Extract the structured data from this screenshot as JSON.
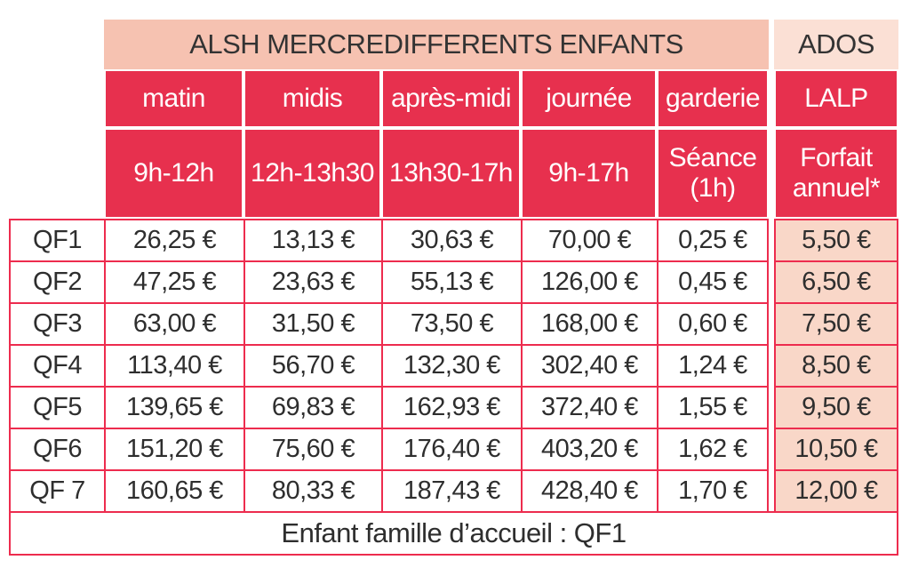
{
  "colors": {
    "red": "#e7304e",
    "red_border": "#ed2c4e",
    "salmon": "#f6c2b1",
    "ados": "#fbe0d5",
    "cell_pink": "#f9d7c8",
    "text": "#2e2e2e"
  },
  "header": {
    "main_title": "ALSH MERCREDIFFERENTS ENFANTS",
    "ados_title": "ADOS"
  },
  "columns": [
    {
      "label": "matin",
      "time1": "9h-12h",
      "time2": ""
    },
    {
      "label": "midis",
      "time1": "12h-13h30",
      "time2": ""
    },
    {
      "label": "après-midi",
      "time1": "13h30-17h",
      "time2": ""
    },
    {
      "label": "journée",
      "time1": "9h-17h",
      "time2": ""
    },
    {
      "label": "garderie",
      "time1": "Séance",
      "time2": "(1h)"
    },
    {
      "label": "LALP",
      "time1": "Forfait",
      "time2": "annuel*"
    }
  ],
  "rows": [
    {
      "label": "QF1",
      "values": [
        "26,25 €",
        "13,13 €",
        "30,63 €",
        "70,00 €",
        "0,25 €",
        "5,50 €"
      ]
    },
    {
      "label": "QF2",
      "values": [
        "47,25 €",
        "23,63 €",
        "55,13 €",
        "126,00 €",
        "0,45 €",
        "6,50 €"
      ]
    },
    {
      "label": "QF3",
      "values": [
        "63,00 €",
        "31,50 €",
        "73,50 €",
        "168,00 €",
        "0,60 €",
        "7,50 €"
      ]
    },
    {
      "label": "QF4",
      "values": [
        "113,40 €",
        "56,70 €",
        "132,30 €",
        "302,40 €",
        "1,24 €",
        "8,50 €"
      ]
    },
    {
      "label": "QF5",
      "values": [
        "139,65 €",
        "69,83 €",
        "162,93 €",
        "372,40 €",
        "1,55 €",
        "9,50 €"
      ]
    },
    {
      "label": "QF6",
      "values": [
        "151,20 €",
        "75,60 €",
        "176,40 €",
        "403,20 €",
        "1,62 €",
        "10,50 €"
      ]
    },
    {
      "label": "QF 7",
      "values": [
        "160,65 €",
        "80,33 €",
        "187,43 €",
        "428,40 €",
        "1,70 €",
        "12,00 €"
      ]
    }
  ],
  "footer": {
    "note": "Enfant famille d’accueil : QF1"
  }
}
